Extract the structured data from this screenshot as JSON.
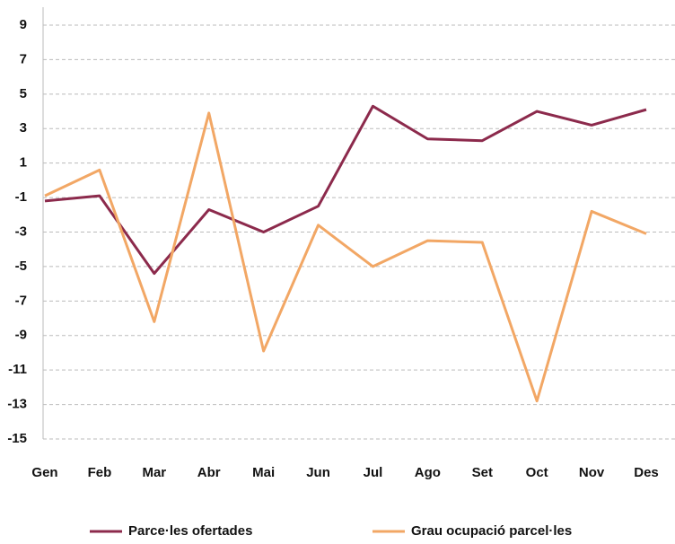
{
  "chart_data": {
    "type": "line",
    "categories": [
      "Gen",
      "Feb",
      "Mar",
      "Abr",
      "Mai",
      "Jun",
      "Jul",
      "Ago",
      "Set",
      "Oct",
      "Nov",
      "Des"
    ],
    "series": [
      {
        "name": "Parce·les ofertades",
        "color": "#8c2a4c",
        "values": [
          -1.2,
          -0.9,
          -5.4,
          -1.7,
          -3.0,
          -1.5,
          4.3,
          2.4,
          2.3,
          4.0,
          3.2,
          4.1
        ]
      },
      {
        "name": "Grau ocupació parcel·les",
        "color": "#f2a765",
        "values": [
          -0.9,
          0.6,
          -8.2,
          3.9,
          -9.9,
          -2.6,
          -5.0,
          -3.5,
          -3.6,
          -12.8,
          -1.8,
          -3.1
        ]
      }
    ],
    "ylim": [
      -15,
      9
    ],
    "yticks": [
      -15,
      -13,
      -11,
      -9,
      -7,
      -5,
      -3,
      -1,
      1,
      3,
      5,
      7,
      9
    ],
    "grid": true,
    "legend": "bottom"
  }
}
